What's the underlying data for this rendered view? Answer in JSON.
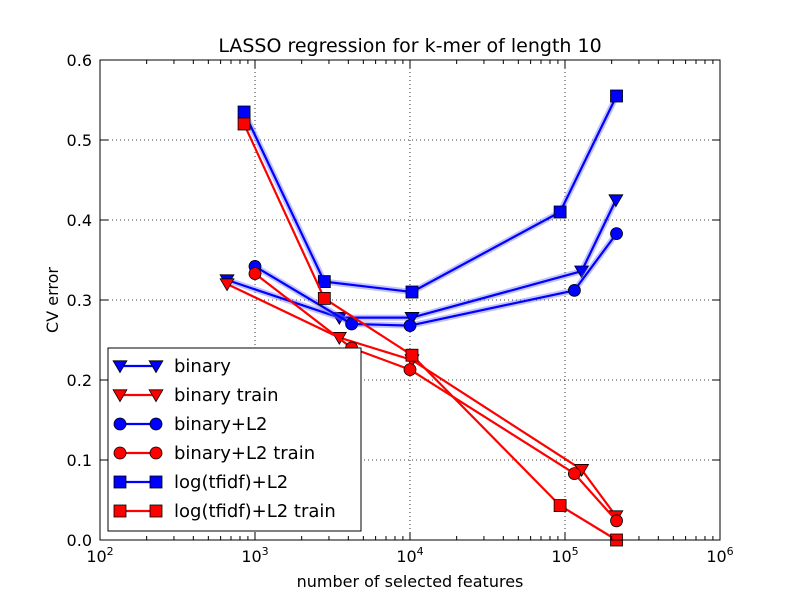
{
  "chart_data": {
    "type": "line",
    "title": "LASSO regression for k-mer of length 10",
    "xlabel": "number of selected features",
    "ylabel": "CV error",
    "xscale": "log",
    "xlim": [
      100,
      1000000
    ],
    "ylim": [
      0.0,
      0.6
    ],
    "grid": true,
    "legend_position": "lower-left",
    "x_tick_labels": [
      {
        "base": "10",
        "exp": "2",
        "value": 100
      },
      {
        "base": "10",
        "exp": "3",
        "value": 1000
      },
      {
        "base": "10",
        "exp": "4",
        "value": 10000
      },
      {
        "base": "10",
        "exp": "5",
        "value": 100000
      },
      {
        "base": "10",
        "exp": "6",
        "value": 1000000
      }
    ],
    "y_ticks": [
      0.0,
      0.1,
      0.2,
      0.3,
      0.4,
      0.5,
      0.6
    ],
    "y_tick_labels": [
      "0.0",
      "0.1",
      "0.2",
      "0.3",
      "0.4",
      "0.5",
      "0.6"
    ],
    "series": [
      {
        "name": "binary",
        "color": "#0000ff",
        "marker": "triangle-down",
        "x": [
          660,
          3500,
          10300,
          128000,
          213000
        ],
        "y": [
          0.325,
          0.278,
          0.278,
          0.336,
          0.425
        ]
      },
      {
        "name": "binary train",
        "color": "#ff0000",
        "marker": "triangle-down",
        "x": [
          660,
          3500,
          10300,
          128000,
          213000
        ],
        "y": [
          0.32,
          0.253,
          0.225,
          0.088,
          0.03
        ]
      },
      {
        "name": "binary+L2",
        "color": "#0000ff",
        "marker": "circle",
        "x": [
          1000,
          4200,
          10000,
          115000,
          215000
        ],
        "y": [
          0.342,
          0.27,
          0.268,
          0.312,
          0.383
        ]
      },
      {
        "name": "binary+L2 train",
        "color": "#ff0000",
        "marker": "circle",
        "x": [
          1000,
          4200,
          10000,
          115000,
          215000
        ],
        "y": [
          0.333,
          0.24,
          0.213,
          0.083,
          0.024
        ]
      },
      {
        "name": "log(tfidf)+L2",
        "color": "#0000ff",
        "marker": "square",
        "x": [
          850,
          2800,
          10300,
          93000,
          215000
        ],
        "y": [
          0.535,
          0.323,
          0.31,
          0.41,
          0.555
        ]
      },
      {
        "name": "log(tfidf)+L2 train",
        "color": "#ff0000",
        "marker": "square",
        "x": [
          850,
          2800,
          10300,
          93000,
          215000
        ],
        "y": [
          0.52,
          0.302,
          0.231,
          0.043,
          0.0
        ]
      }
    ]
  }
}
